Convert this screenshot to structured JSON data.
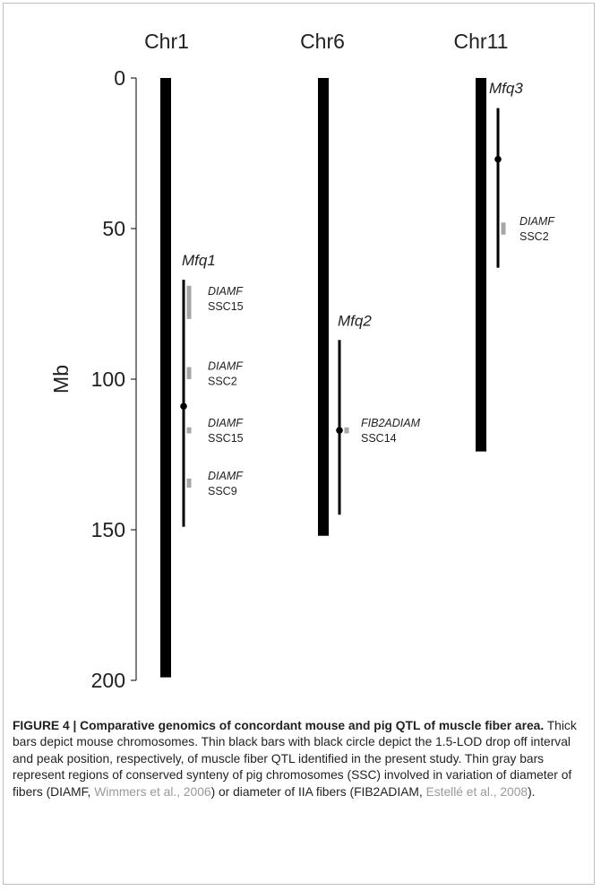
{
  "chart_data": {
    "type": "chromosome-map",
    "ylabel": "Mb",
    "ylim": [
      0,
      200
    ],
    "yticks": [
      0,
      50,
      100,
      150,
      200
    ],
    "chromosomes": [
      {
        "name": "Chr1",
        "length": 199,
        "qtl": {
          "name": "Mfq1",
          "start": 67,
          "end": 149,
          "peak": 109
        },
        "synteny": [
          {
            "trait": "DIAMF",
            "ssc": "SSC15",
            "start": 69,
            "end": 80
          },
          {
            "trait": "DIAMF",
            "ssc": "SSC2",
            "start": 96,
            "end": 100
          },
          {
            "trait": "DIAMF",
            "ssc": "SSC15",
            "start": 116,
            "end": 118
          },
          {
            "trait": "DIAMF",
            "ssc": "SSC9",
            "start": 133,
            "end": 136
          }
        ]
      },
      {
        "name": "Chr6",
        "length": 152,
        "qtl": {
          "name": "Mfq2",
          "start": 87,
          "end": 145,
          "peak": 117
        },
        "synteny": [
          {
            "trait": "FIB2ADIAM",
            "ssc": "SSC14",
            "start": 116,
            "end": 118
          }
        ]
      },
      {
        "name": "Chr11",
        "length": 124,
        "qtl": {
          "name": "Mfq3",
          "start": 10,
          "end": 63,
          "peak": 27
        },
        "synteny": [
          {
            "trait": "DIAMF",
            "ssc": "SSC2",
            "start": 48,
            "end": 52
          }
        ]
      }
    ]
  },
  "caption": {
    "label": "FIGURE 4 | Comparative genomics of concordant mouse and pig QTL of muscle fiber area.",
    "text1": " Thick bars depict mouse chromosomes. Thin black bars with black circle depict the 1.5-LOD drop off interval and peak position, respectively, of muscle fiber QTL identified in the present study. Thin gray bars represent regions of conserved synteny of pig chromosomes (SSC) involved in variation of diameter of fibers (DIAMF, ",
    "cite1": "Wimmers et al., 2006",
    "text2": ") or diameter of IIA fibers (FIB2ADIAM, ",
    "cite2": "Estellé et al., 2008",
    "text3": ")."
  },
  "colors": {
    "chromosome": "#000000",
    "qtl": "#000000",
    "synteny": "#a6a6a6",
    "citation": "#9a9a9a"
  }
}
